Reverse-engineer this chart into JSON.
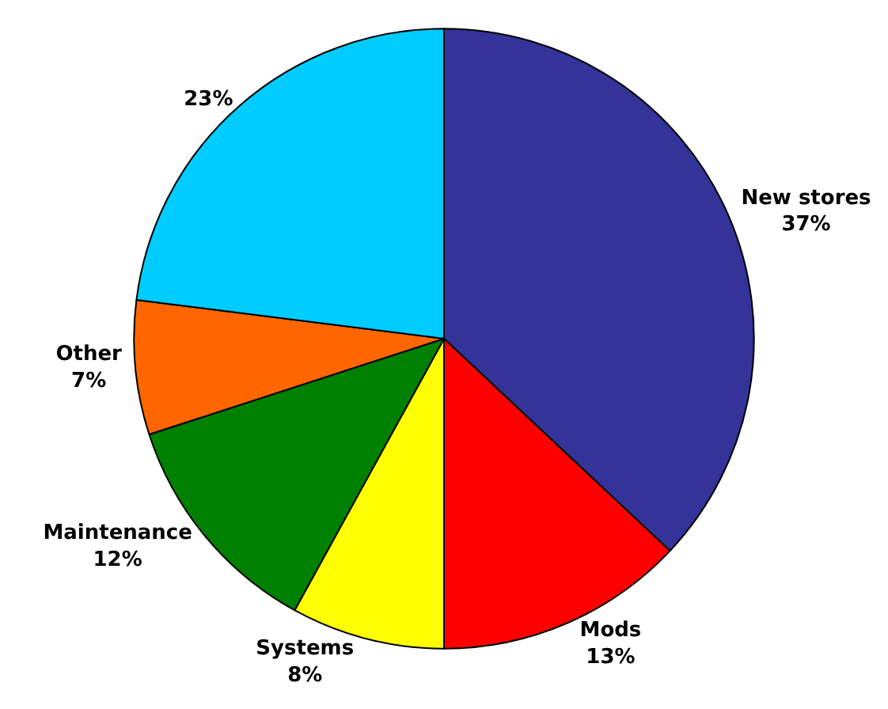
{
  "chart_data": {
    "type": "pie",
    "categories": [
      "New stores",
      "Mods",
      "Systems",
      "Maintenance",
      "Other",
      null
    ],
    "values": [
      37,
      13,
      8,
      12,
      7,
      23
    ],
    "value_labels": [
      "37%",
      "13%",
      "8%",
      "12%",
      "7%",
      "23%"
    ],
    "colors": [
      "#333399",
      "#ff0000",
      "#ffff00",
      "#008000",
      "#ff6600",
      "#00ccff"
    ],
    "legend": false
  }
}
